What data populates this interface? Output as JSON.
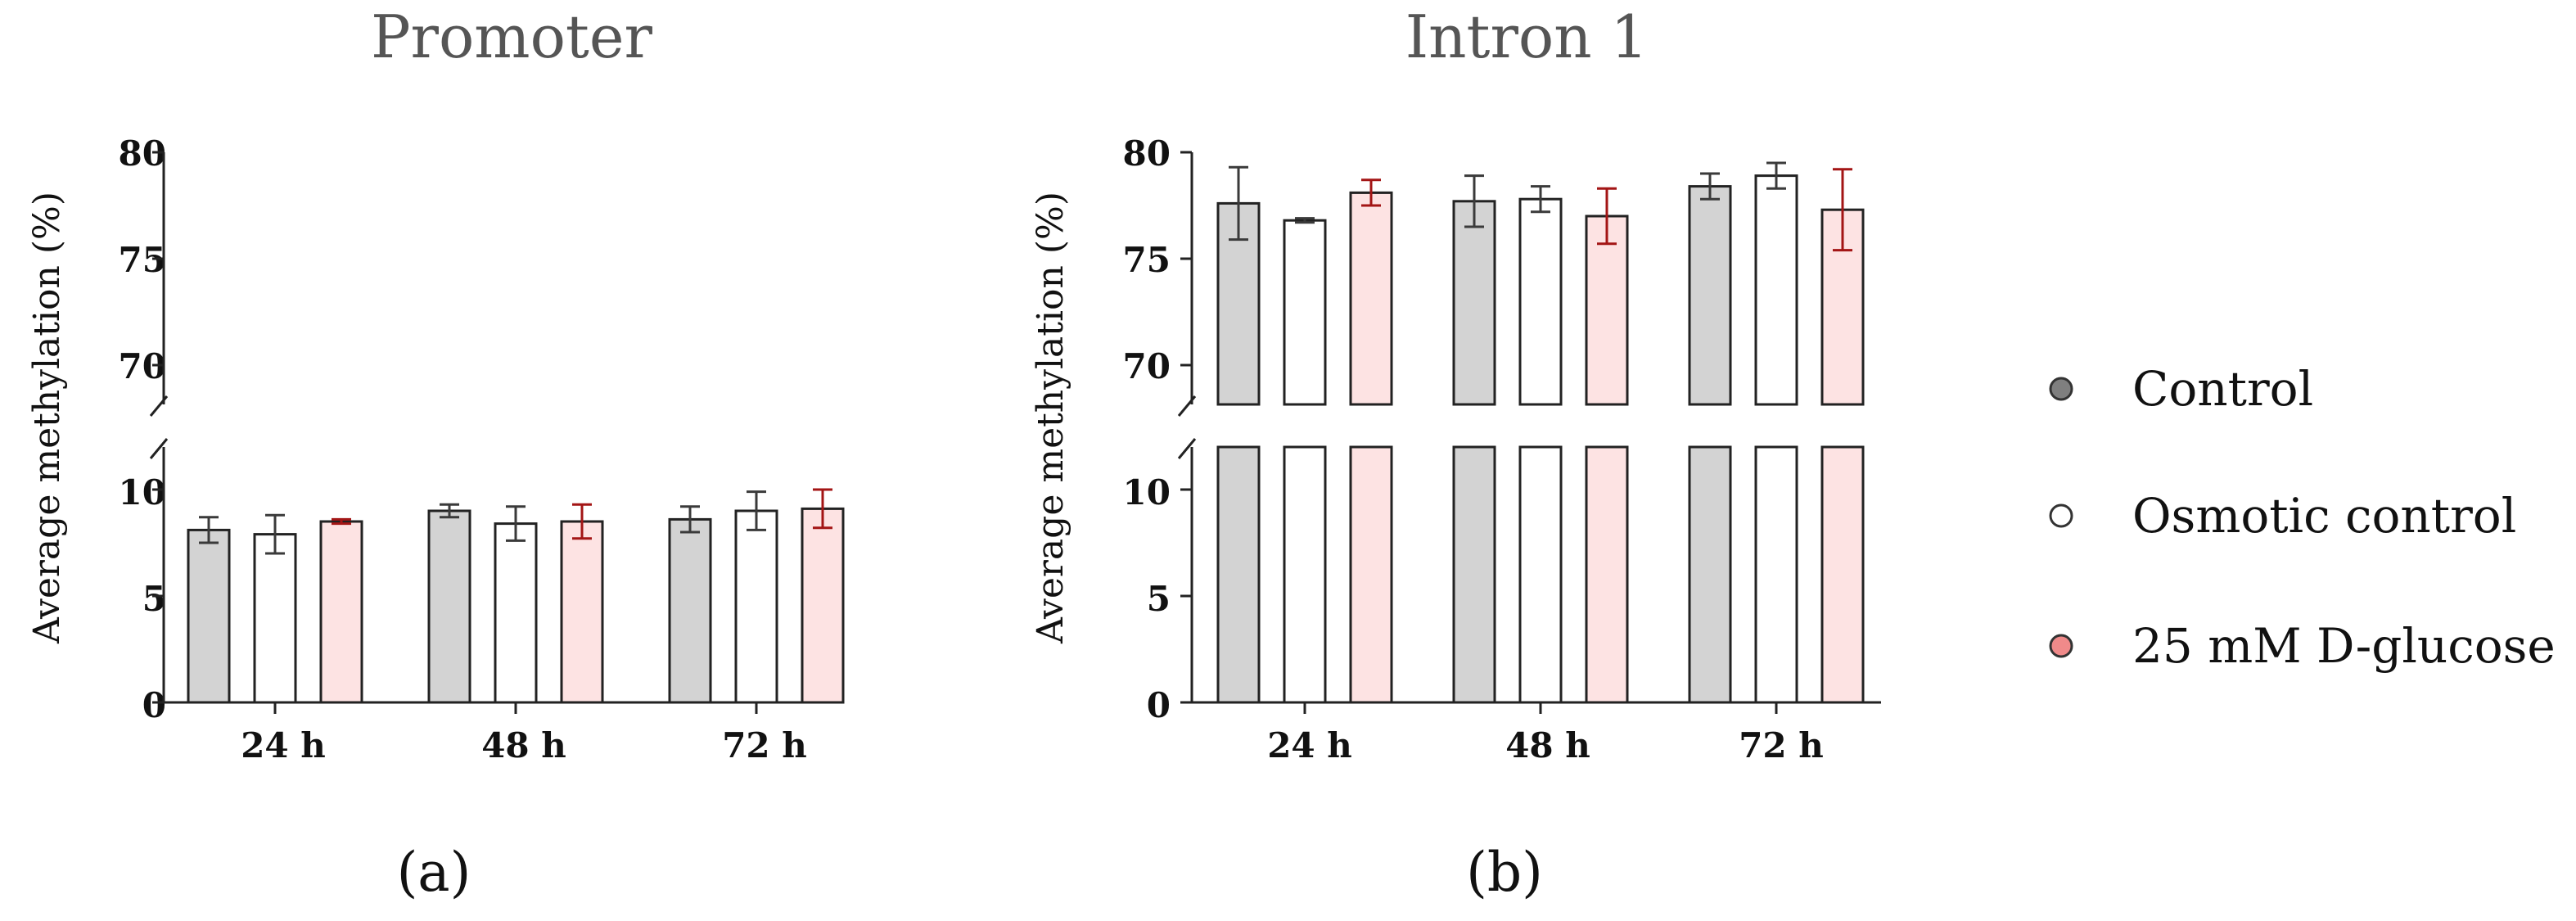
{
  "chart_data": [
    {
      "panel_label": "(a)",
      "type": "bar",
      "title": "Promoter",
      "ylabel": "Average methylation (%)",
      "categories": [
        "24 h",
        "48 h",
        "72 h"
      ],
      "ylim_lower": [
        0,
        12
      ],
      "ylim_upper": [
        68,
        80
      ],
      "yticks_lower": [
        "0",
        "5",
        "10"
      ],
      "yticks_upper": [
        "70",
        "75",
        "80"
      ],
      "y_break": true,
      "series": [
        {
          "name": "Control",
          "values": [
            8.1,
            9.0,
            8.6
          ],
          "errors": [
            0.6,
            0.3,
            0.6
          ]
        },
        {
          "name": "Osmotic control",
          "values": [
            7.9,
            8.4,
            9.0
          ],
          "errors": [
            0.9,
            0.8,
            0.9
          ]
        },
        {
          "name": "25 mM D-glucose",
          "values": [
            8.5,
            8.5,
            9.1
          ],
          "errors": [
            0.1,
            0.8,
            0.9
          ]
        }
      ]
    },
    {
      "panel_label": "(b)",
      "type": "bar",
      "title": "Intron 1",
      "ylabel": "Average methylation (%)",
      "categories": [
        "24 h",
        "48 h",
        "72 h"
      ],
      "ylim_lower": [
        0,
        12
      ],
      "ylim_upper": [
        68,
        80
      ],
      "yticks_lower": [
        "0",
        "5",
        "10"
      ],
      "yticks_upper": [
        "70",
        "75",
        "80"
      ],
      "y_break": true,
      "series": [
        {
          "name": "Control",
          "values": [
            77.6,
            77.7,
            78.4
          ],
          "errors": [
            1.7,
            1.2,
            0.6
          ]
        },
        {
          "name": "Osmotic control",
          "values": [
            76.8,
            77.8,
            78.9
          ],
          "errors": [
            0.1,
            0.6,
            0.6
          ]
        },
        {
          "name": "25 mM D-glucose",
          "values": [
            78.1,
            77.0,
            77.3
          ],
          "errors": [
            0.6,
            1.3,
            1.9
          ]
        }
      ]
    }
  ],
  "legend": {
    "items": [
      {
        "label": "Control",
        "color": "#7f7f7f"
      },
      {
        "label": "Osmotic control",
        "color": "#ffffff"
      },
      {
        "label": "25 mM D-glucose",
        "color": "#f08a8a"
      }
    ]
  },
  "colors": {
    "fills": [
      "#d3d3d3",
      "#ffffff",
      "#fde3e3"
    ],
    "errors": [
      "#3a3a3a",
      "#3a3a3a",
      "#a31515"
    ],
    "axis": "#222222"
  }
}
